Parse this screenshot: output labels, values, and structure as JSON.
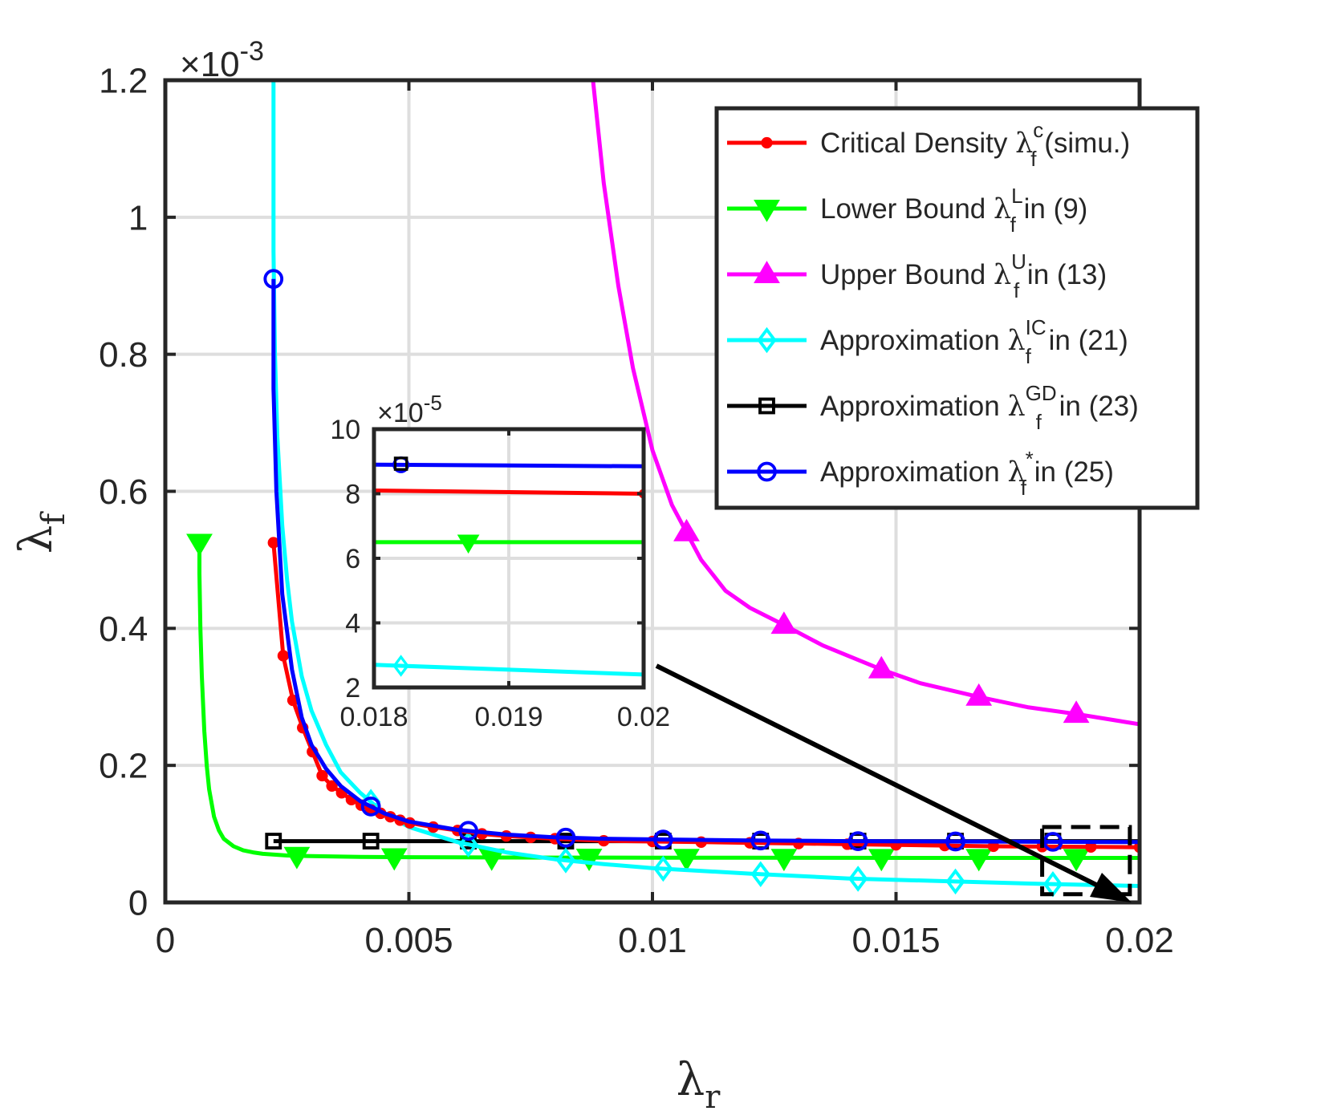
{
  "chart_data": {
    "type": "line",
    "xlabel": "λ",
    "xlabel_sub": "r",
    "ylabel": "λ",
    "ylabel_sub": "f",
    "xlim": [
      0,
      0.02
    ],
    "ylim": [
      0,
      1.2
    ],
    "y_multiplier": "×10",
    "y_multiplier_exp": "-3",
    "xticks": [
      0,
      0.005,
      0.01,
      0.015,
      0.02
    ],
    "xtick_labels": [
      "0",
      "0.005",
      "0.01",
      "0.015",
      "0.02"
    ],
    "yticks": [
      0,
      0.2,
      0.4,
      0.6,
      0.8,
      1,
      1.2
    ],
    "ytick_labels": [
      "0",
      "0.2",
      "0.4",
      "0.6",
      "0.8",
      "1",
      "1.2"
    ],
    "grid": true,
    "legend_position": "top-right",
    "series": [
      {
        "name": "Critical Density",
        "legend_pre": "Critical Density ",
        "legend_sym": "λ",
        "legend_sup": "c",
        "legend_sub": "f",
        "legend_post": " (simu.)",
        "color": "#ff0000",
        "marker": "dot",
        "x": [
          0.00222,
          0.00242,
          0.00262,
          0.00282,
          0.00302,
          0.00322,
          0.00342,
          0.00362,
          0.00382,
          0.00402,
          0.00422,
          0.00442,
          0.00462,
          0.00482,
          0.00502,
          0.0055,
          0.006,
          0.0065,
          0.007,
          0.0075,
          0.008,
          0.009,
          0.01,
          0.011,
          0.012,
          0.013,
          0.014,
          0.015,
          0.016,
          0.017,
          0.018,
          0.019,
          0.02
        ],
        "y": [
          0.525,
          0.36,
          0.295,
          0.255,
          0.22,
          0.185,
          0.17,
          0.16,
          0.15,
          0.142,
          0.135,
          0.13,
          0.125,
          0.12,
          0.116,
          0.11,
          0.105,
          0.1,
          0.097,
          0.095,
          0.093,
          0.09,
          0.089,
          0.088,
          0.087,
          0.086,
          0.085,
          0.084,
          0.083,
          0.082,
          0.0815,
          0.081,
          0.0805
        ],
        "marker_indices": [
          0,
          1,
          2,
          3,
          4,
          5,
          6,
          7,
          8,
          9,
          10,
          11,
          12,
          13,
          14,
          15,
          16,
          17,
          18,
          19,
          20,
          21,
          22,
          23,
          24,
          25,
          26,
          27,
          28,
          29,
          30,
          31,
          32
        ]
      },
      {
        "name": "Lower Bound",
        "legend_pre": "Lower Bound ",
        "legend_sym": "λ",
        "legend_sup": "L",
        "legend_sub": "f",
        "legend_post": " in (9)",
        "color": "#00ff00",
        "marker": "triangle-down",
        "x": [
          0.0007,
          0.0007,
          0.00072,
          0.00075,
          0.0008,
          0.00085,
          0.0009,
          0.001,
          0.0011,
          0.0012,
          0.0014,
          0.0016,
          0.0018,
          0.002,
          0.0025,
          0.003,
          0.004,
          0.005,
          0.006,
          0.007,
          0.008,
          0.009,
          0.01,
          0.012,
          0.014,
          0.016,
          0.018,
          0.02
        ],
        "y": [
          0.525,
          0.48,
          0.4,
          0.33,
          0.25,
          0.2,
          0.165,
          0.125,
          0.105,
          0.093,
          0.082,
          0.076,
          0.073,
          0.071,
          0.0685,
          0.0675,
          0.0665,
          0.066,
          0.0658,
          0.0656,
          0.0655,
          0.0654,
          0.0653,
          0.0652,
          0.0651,
          0.065,
          0.065,
          0.065
        ],
        "marker_x": [
          0.0007,
          0.0027,
          0.0047,
          0.0067,
          0.0087,
          0.0107,
          0.0127,
          0.0147,
          0.0167,
          0.0187
        ]
      },
      {
        "name": "Upper Bound",
        "legend_pre": "Upper Bound ",
        "legend_sym": "λ",
        "legend_sup": "U",
        "legend_sub": "f",
        "legend_post": " in (13)",
        "color": "#ff00ff",
        "marker": "triangle-up",
        "x": [
          0.00878,
          0.009,
          0.0093,
          0.0096,
          0.01,
          0.0104,
          0.0107,
          0.011,
          0.0115,
          0.012,
          0.0127,
          0.0135,
          0.0147,
          0.0155,
          0.0167,
          0.0177,
          0.0187,
          0.02
        ],
        "y": [
          1.2,
          1.05,
          0.9,
          0.78,
          0.66,
          0.58,
          0.54,
          0.5,
          0.455,
          0.43,
          0.405,
          0.375,
          0.34,
          0.32,
          0.3,
          0.285,
          0.275,
          0.26
        ],
        "marker_x": [
          0.0107,
          0.0127,
          0.0147,
          0.0167,
          0.0187
        ]
      },
      {
        "name": "Approximation IC",
        "legend_pre": "Approximation ",
        "legend_sym": "λ",
        "legend_sup": "IC",
        "legend_sub": "f",
        "legend_post": " in (21)",
        "color": "#00ffff",
        "marker": "diamond",
        "x": [
          0.00222,
          0.00222,
          0.00225,
          0.0023,
          0.0024,
          0.0025,
          0.0026,
          0.0028,
          0.003,
          0.0033,
          0.0036,
          0.004,
          0.0045,
          0.005,
          0.006,
          0.007,
          0.008,
          0.009,
          0.01,
          0.012,
          0.014,
          0.016,
          0.018,
          0.02
        ],
        "y": [
          1.2,
          0.95,
          0.8,
          0.68,
          0.55,
          0.47,
          0.41,
          0.33,
          0.28,
          0.23,
          0.19,
          0.16,
          0.13,
          0.11,
          0.088,
          0.073,
          0.063,
          0.056,
          0.05,
          0.042,
          0.035,
          0.031,
          0.027,
          0.024
        ],
        "marker_x": [
          0.00422,
          0.00622,
          0.00822,
          0.01022,
          0.01222,
          0.01422,
          0.01622,
          0.01822
        ]
      },
      {
        "name": "Approximation GD",
        "legend_pre": "Approximation ",
        "legend_sym": "λ",
        "legend_sup": "GD",
        "legend_sub": "f",
        "legend_post": " in (23)",
        "color": "#000000",
        "marker": "square",
        "x": [
          0.00222,
          0.02
        ],
        "y": [
          0.0895,
          0.0895
        ],
        "marker_x": [
          0.00222,
          0.00422,
          0.00622,
          0.00822,
          0.01022,
          0.01222,
          0.01422,
          0.01622,
          0.01822
        ]
      },
      {
        "name": "Approximation star",
        "legend_pre": "Approximation ",
        "legend_sym": "λ",
        "legend_sup": "*",
        "legend_sub": "f",
        "legend_post": " in (25)",
        "color": "#0000ff",
        "marker": "circle",
        "x": [
          0.00222,
          0.00222,
          0.00228,
          0.0024,
          0.0026,
          0.0028,
          0.003,
          0.0033,
          0.0036,
          0.004,
          0.0045,
          0.005,
          0.006,
          0.007,
          0.008,
          0.009,
          0.01,
          0.012,
          0.014,
          0.016,
          0.018,
          0.02
        ],
        "y": [
          0.91,
          0.75,
          0.6,
          0.45,
          0.34,
          0.27,
          0.23,
          0.195,
          0.17,
          0.148,
          0.13,
          0.118,
          0.106,
          0.099,
          0.095,
          0.093,
          0.092,
          0.0905,
          0.0895,
          0.089,
          0.0885,
          0.088
        ],
        "marker_x": [
          0.00222,
          0.00422,
          0.00622,
          0.00822,
          0.01022,
          0.01222,
          0.01422,
          0.01622,
          0.01822
        ]
      }
    ],
    "zoom_region": {
      "x": [
        0.018,
        0.0198
      ],
      "y": [
        0.012,
        0.11
      ]
    },
    "inset": {
      "xlim": [
        0.018,
        0.02
      ],
      "ylim": [
        2,
        10
      ],
      "xticks": [
        0.018,
        0.019,
        0.02
      ],
      "xtick_labels": [
        "0.018",
        "0.019",
        "0.02"
      ],
      "yticks": [
        2,
        4,
        6,
        8,
        10
      ],
      "ytick_labels": [
        "2",
        "4",
        "6",
        "8",
        "10"
      ],
      "y_multiplier": "×10",
      "y_multiplier_exp": "-5",
      "series": [
        {
          "name": "Approximation star",
          "color": "#0000ff",
          "marker": "circle",
          "x": [
            0.018,
            0.02
          ],
          "y": [
            8.9,
            8.85
          ],
          "marker_x": [
            0.0182
          ]
        },
        {
          "name": "Approximation GD",
          "color": "#000000",
          "marker": "square",
          "x": [
            0.0182
          ],
          "y": [
            8.93
          ],
          "marker_x": [
            0.0182
          ]
        },
        {
          "name": "Critical Density",
          "color": "#ff0000",
          "marker": "dot",
          "x": [
            0.018,
            0.02
          ],
          "y": [
            8.1,
            8.0
          ],
          "marker_x": [
            0.02
          ]
        },
        {
          "name": "Lower Bound",
          "color": "#00ff00",
          "marker": "triangle-down",
          "x": [
            0.018,
            0.02
          ],
          "y": [
            6.5,
            6.5
          ],
          "marker_x": [
            0.0187
          ]
        },
        {
          "name": "Approximation IC",
          "color": "#00ffff",
          "marker": "diamond",
          "x": [
            0.018,
            0.02
          ],
          "y": [
            2.7,
            2.4
          ],
          "marker_x": [
            0.0182
          ]
        }
      ]
    }
  }
}
